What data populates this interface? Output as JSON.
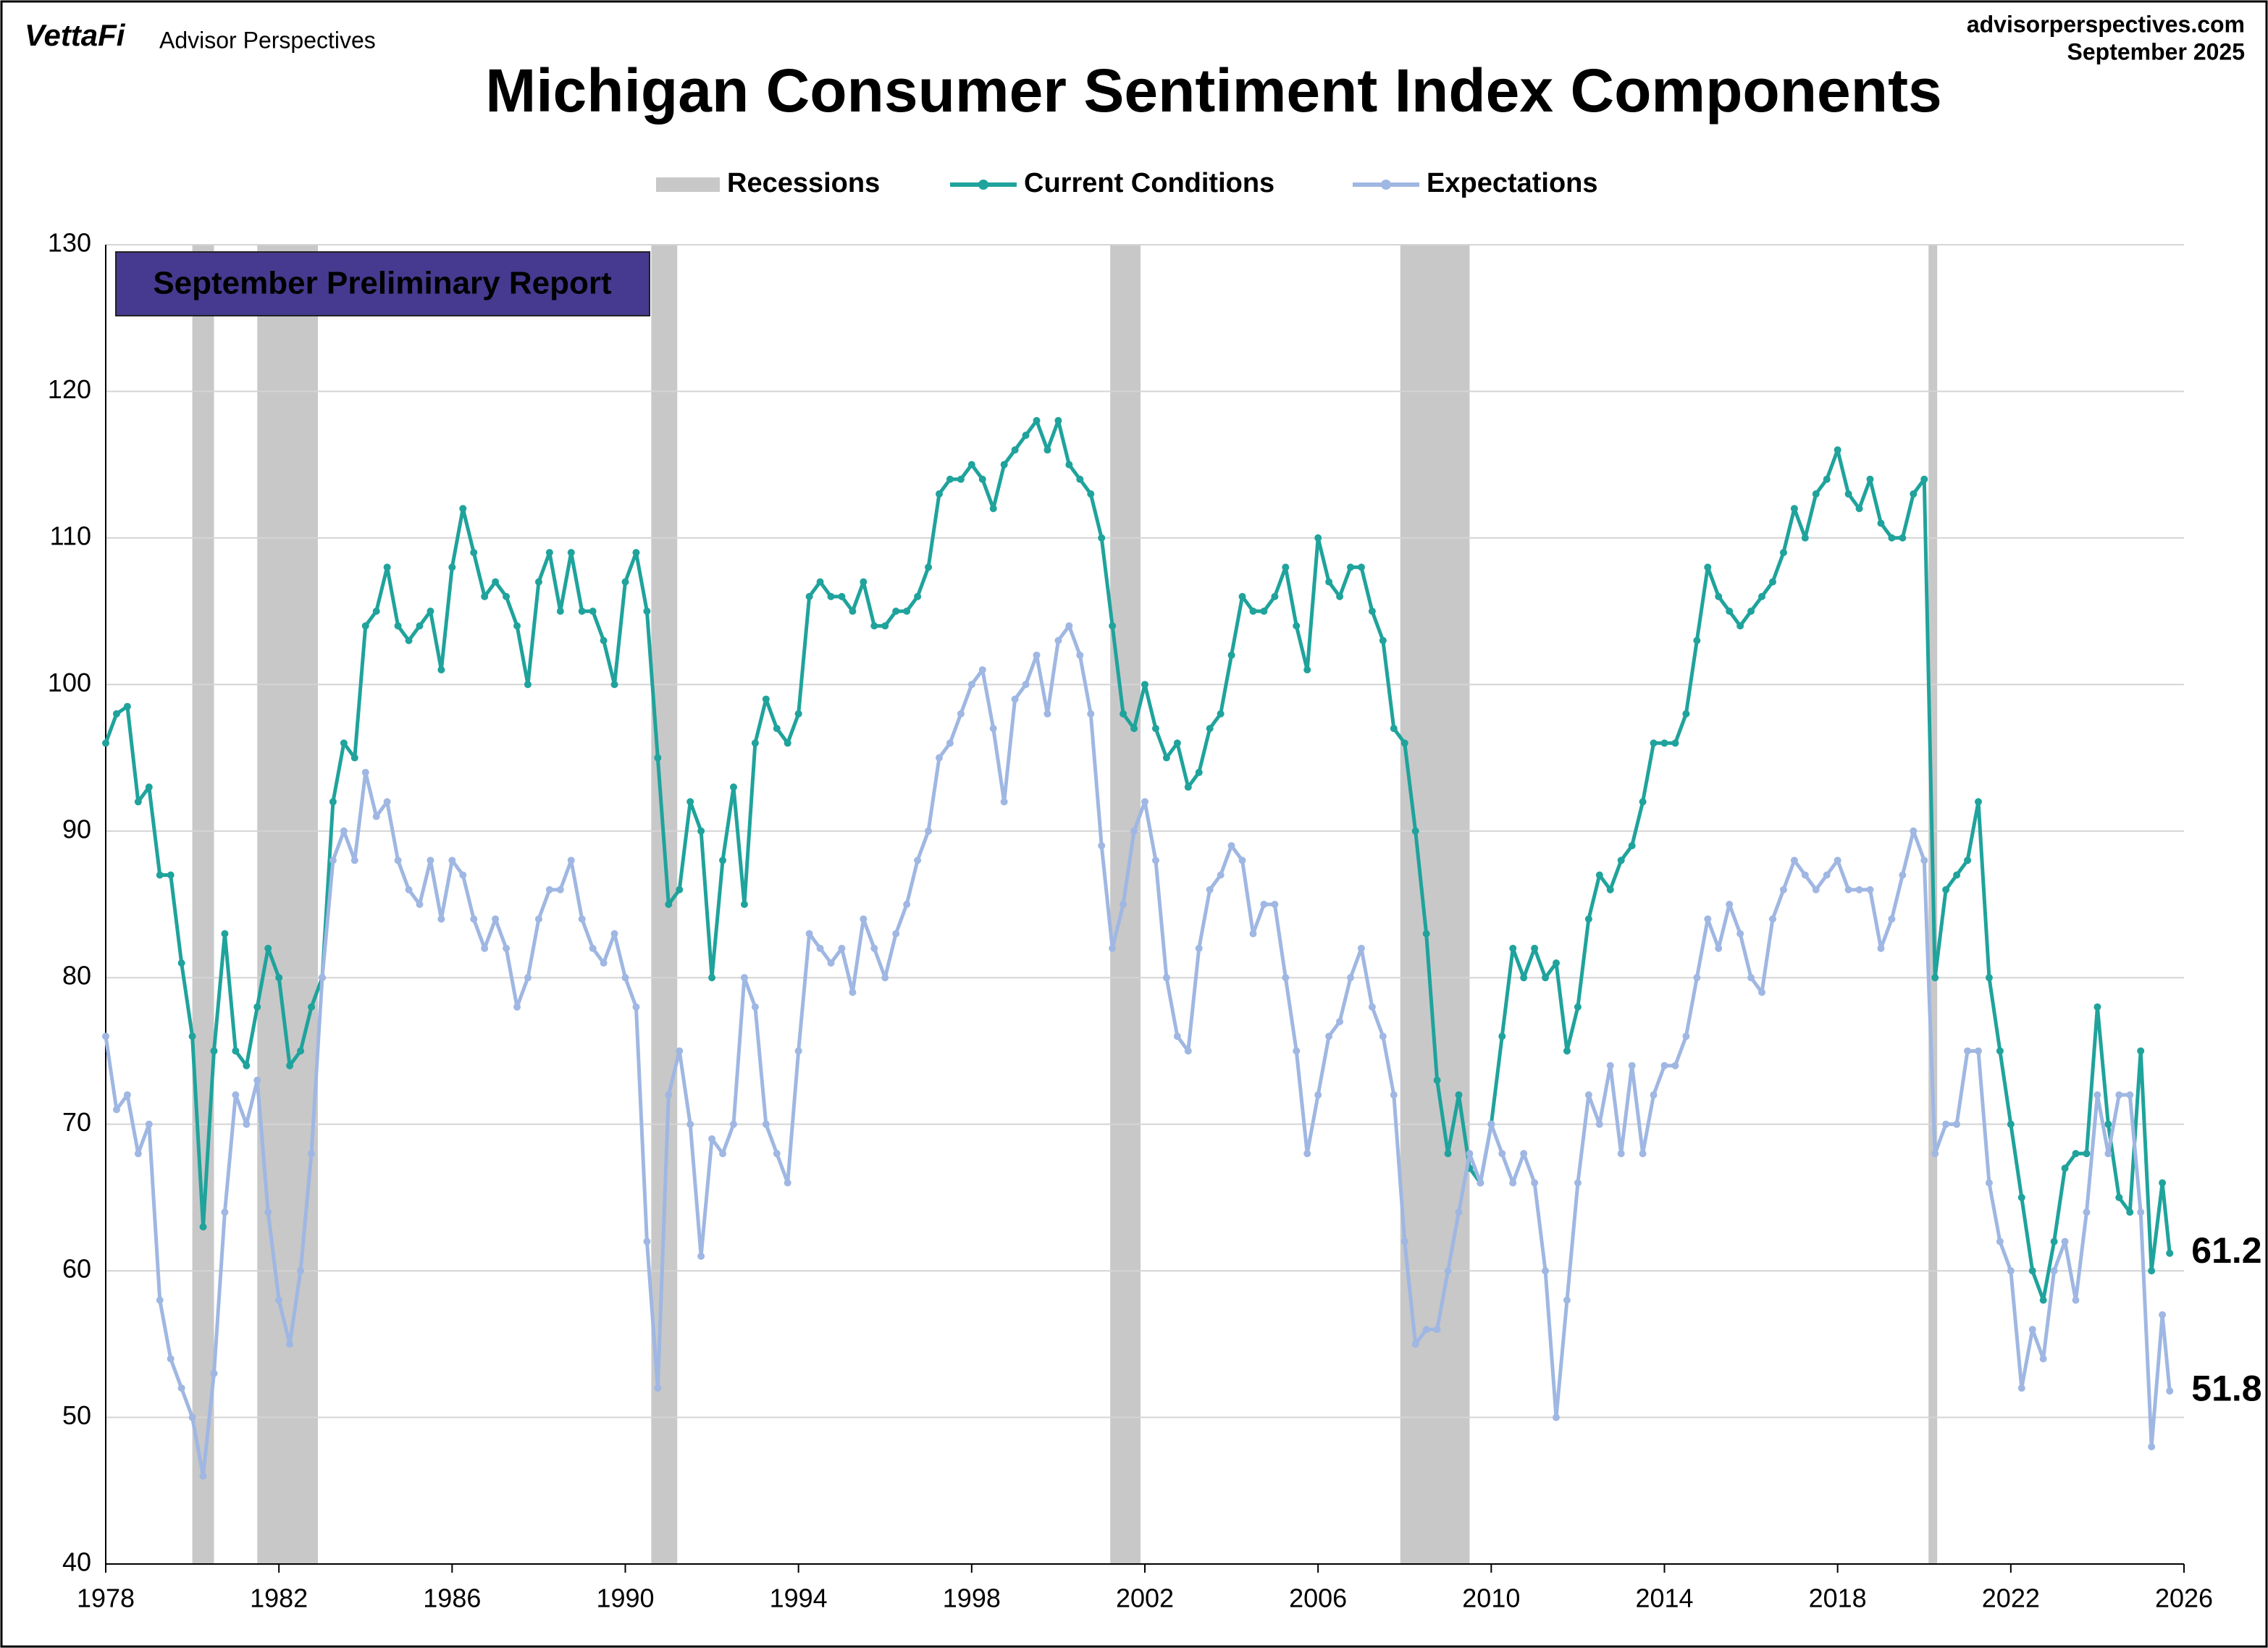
{
  "header": {
    "brand": "VettaFi",
    "publisher": "Advisor Perspectives",
    "site": "advisorperspectives.com",
    "date": "September 2025"
  },
  "chart_data": {
    "type": "line",
    "title": "Michigan Consumer Sentiment Index Components",
    "annotation": "September Preliminary Report",
    "recessions": {
      "name": "Recessions",
      "color": "#c8c8c8",
      "spans": [
        [
          1980,
          1980.5
        ],
        [
          1981.5,
          1982.9
        ],
        [
          1990.6,
          1991.2
        ],
        [
          2001.2,
          2001.9
        ],
        [
          2007.9,
          2009.5
        ],
        [
          2020.1,
          2020.3
        ]
      ]
    },
    "x": [
      1978,
      1978.25,
      1978.5,
      1978.75,
      1979,
      1979.25,
      1979.5,
      1979.75,
      1980,
      1980.25,
      1980.5,
      1980.75,
      1981,
      1981.25,
      1981.5,
      1981.75,
      1982,
      1982.25,
      1982.5,
      1982.75,
      1983,
      1983.25,
      1983.5,
      1983.75,
      1984,
      1984.25,
      1984.5,
      1984.75,
      1985,
      1985.25,
      1985.5,
      1985.75,
      1986,
      1986.25,
      1986.5,
      1986.75,
      1987,
      1987.25,
      1987.5,
      1987.75,
      1988,
      1988.25,
      1988.5,
      1988.75,
      1989,
      1989.25,
      1989.5,
      1989.75,
      1990,
      1990.25,
      1990.5,
      1990.75,
      1991,
      1991.25,
      1991.5,
      1991.75,
      1992,
      1992.25,
      1992.5,
      1992.75,
      1993,
      1993.25,
      1993.5,
      1993.75,
      1994,
      1994.25,
      1994.5,
      1994.75,
      1995,
      1995.25,
      1995.5,
      1995.75,
      1996,
      1996.25,
      1996.5,
      1996.75,
      1997,
      1997.25,
      1997.5,
      1997.75,
      1998,
      1998.25,
      1998.5,
      1998.75,
      1999,
      1999.25,
      1999.5,
      1999.75,
      2000,
      2000.25,
      2000.5,
      2000.75,
      2001,
      2001.25,
      2001.5,
      2001.75,
      2002,
      2002.25,
      2002.5,
      2002.75,
      2003,
      2003.25,
      2003.5,
      2003.75,
      2004,
      2004.25,
      2004.5,
      2004.75,
      2005,
      2005.25,
      2005.5,
      2005.75,
      2006,
      2006.25,
      2006.5,
      2006.75,
      2007,
      2007.25,
      2007.5,
      2007.75,
      2008,
      2008.25,
      2008.5,
      2008.75,
      2009,
      2009.25,
      2009.5,
      2009.75,
      2010,
      2010.25,
      2010.5,
      2010.75,
      2011,
      2011.25,
      2011.5,
      2011.75,
      2012,
      2012.25,
      2012.5,
      2012.75,
      2013,
      2013.25,
      2013.5,
      2013.75,
      2014,
      2014.25,
      2014.5,
      2014.75,
      2015,
      2015.25,
      2015.5,
      2015.75,
      2016,
      2016.25,
      2016.5,
      2016.75,
      2017,
      2017.25,
      2017.5,
      2017.75,
      2018,
      2018.25,
      2018.5,
      2018.75,
      2019,
      2019.25,
      2019.5,
      2019.75,
      2020,
      2020.25,
      2020.5,
      2020.75,
      2021,
      2021.25,
      2021.5,
      2021.75,
      2022,
      2022.25,
      2022.5,
      2022.75,
      2023,
      2023.25,
      2023.5,
      2023.75,
      2024,
      2024.25,
      2024.5,
      2024.75,
      2025,
      2025.25,
      2025.5,
      2025.67
    ],
    "series": [
      {
        "name": "Current Conditions",
        "color": "#1fa39c",
        "values": [
          96,
          98,
          98.5,
          92,
          93,
          87,
          87,
          81,
          76,
          63,
          75,
          83,
          75,
          74,
          78,
          82,
          80,
          74,
          75,
          78,
          80,
          92,
          96,
          95,
          104,
          105,
          108,
          104,
          103,
          104,
          105,
          101,
          108,
          112,
          109,
          106,
          107,
          106,
          104,
          100,
          107,
          109,
          105,
          109,
          105,
          105,
          103,
          100,
          107,
          109,
          105,
          95,
          85,
          86,
          92,
          90,
          80,
          88,
          93,
          85,
          96,
          99,
          97,
          96,
          98,
          106,
          107,
          106,
          106,
          105,
          107,
          104,
          104,
          105,
          105,
          106,
          108,
          113,
          114,
          114,
          115,
          114,
          112,
          115,
          116,
          117,
          118,
          116,
          118,
          115,
          114,
          113,
          110,
          104,
          98,
          97,
          100,
          97,
          95,
          96,
          93,
          94,
          97,
          98,
          102,
          106,
          105,
          105,
          106,
          108,
          104,
          101,
          110,
          107,
          106,
          108,
          108,
          105,
          103,
          97,
          96,
          90,
          83,
          73,
          68,
          72,
          67,
          66,
          70,
          76,
          82,
          80,
          82,
          80,
          81,
          75,
          78,
          84,
          87,
          86,
          88,
          89,
          92,
          96,
          96,
          96,
          98,
          103,
          108,
          106,
          105,
          104,
          105,
          106,
          107,
          109,
          112,
          110,
          113,
          114,
          116,
          113,
          112,
          114,
          111,
          110,
          110,
          113,
          114,
          80,
          86,
          87,
          88,
          92,
          80,
          75,
          70,
          65,
          60,
          58,
          62,
          67,
          68,
          68,
          78,
          70,
          65,
          64,
          75,
          60,
          66,
          61.2
        ]
      },
      {
        "name": "Expectations",
        "color": "#9fb7e2",
        "values": [
          76,
          71,
          72,
          68,
          70,
          58,
          54,
          52,
          50,
          46,
          53,
          64,
          72,
          70,
          73,
          64,
          58,
          55,
          60,
          68,
          80,
          88,
          90,
          88,
          94,
          91,
          92,
          88,
          86,
          85,
          88,
          84,
          88,
          87,
          84,
          82,
          84,
          82,
          78,
          80,
          84,
          86,
          86,
          88,
          84,
          82,
          81,
          83,
          80,
          78,
          62,
          52,
          72,
          75,
          70,
          61,
          69,
          68,
          70,
          80,
          78,
          70,
          68,
          66,
          75,
          83,
          82,
          81,
          82,
          79,
          84,
          82,
          80,
          83,
          85,
          88,
          90,
          95,
          96,
          98,
          100,
          101,
          97,
          92,
          99,
          100,
          102,
          98,
          103,
          104,
          102,
          98,
          89,
          82,
          85,
          90,
          92,
          88,
          80,
          76,
          75,
          82,
          86,
          87,
          89,
          88,
          83,
          85,
          85,
          80,
          75,
          68,
          72,
          76,
          77,
          80,
          82,
          78,
          76,
          72,
          62,
          55,
          56,
          56,
          60,
          64,
          68,
          66,
          70,
          68,
          66,
          68,
          66,
          60,
          50,
          58,
          66,
          72,
          70,
          74,
          68,
          74,
          68,
          72,
          74,
          74,
          76,
          80,
          84,
          82,
          85,
          83,
          80,
          79,
          84,
          86,
          88,
          87,
          86,
          87,
          88,
          86,
          86,
          86,
          82,
          84,
          87,
          90,
          88,
          68,
          70,
          70,
          75,
          75,
          66,
          62,
          60,
          52,
          56,
          54,
          60,
          62,
          58,
          64,
          72,
          68,
          72,
          72,
          64,
          48,
          57,
          51.8
        ]
      }
    ],
    "xlim": [
      1978,
      2026
    ],
    "xticks": [
      1978,
      1982,
      1986,
      1990,
      1994,
      1998,
      2002,
      2006,
      2010,
      2014,
      2018,
      2022,
      2026
    ],
    "ylim": [
      40,
      130
    ],
    "yticks": [
      40,
      50,
      60,
      70,
      80,
      90,
      100,
      110,
      120,
      130
    ],
    "grid": true
  }
}
